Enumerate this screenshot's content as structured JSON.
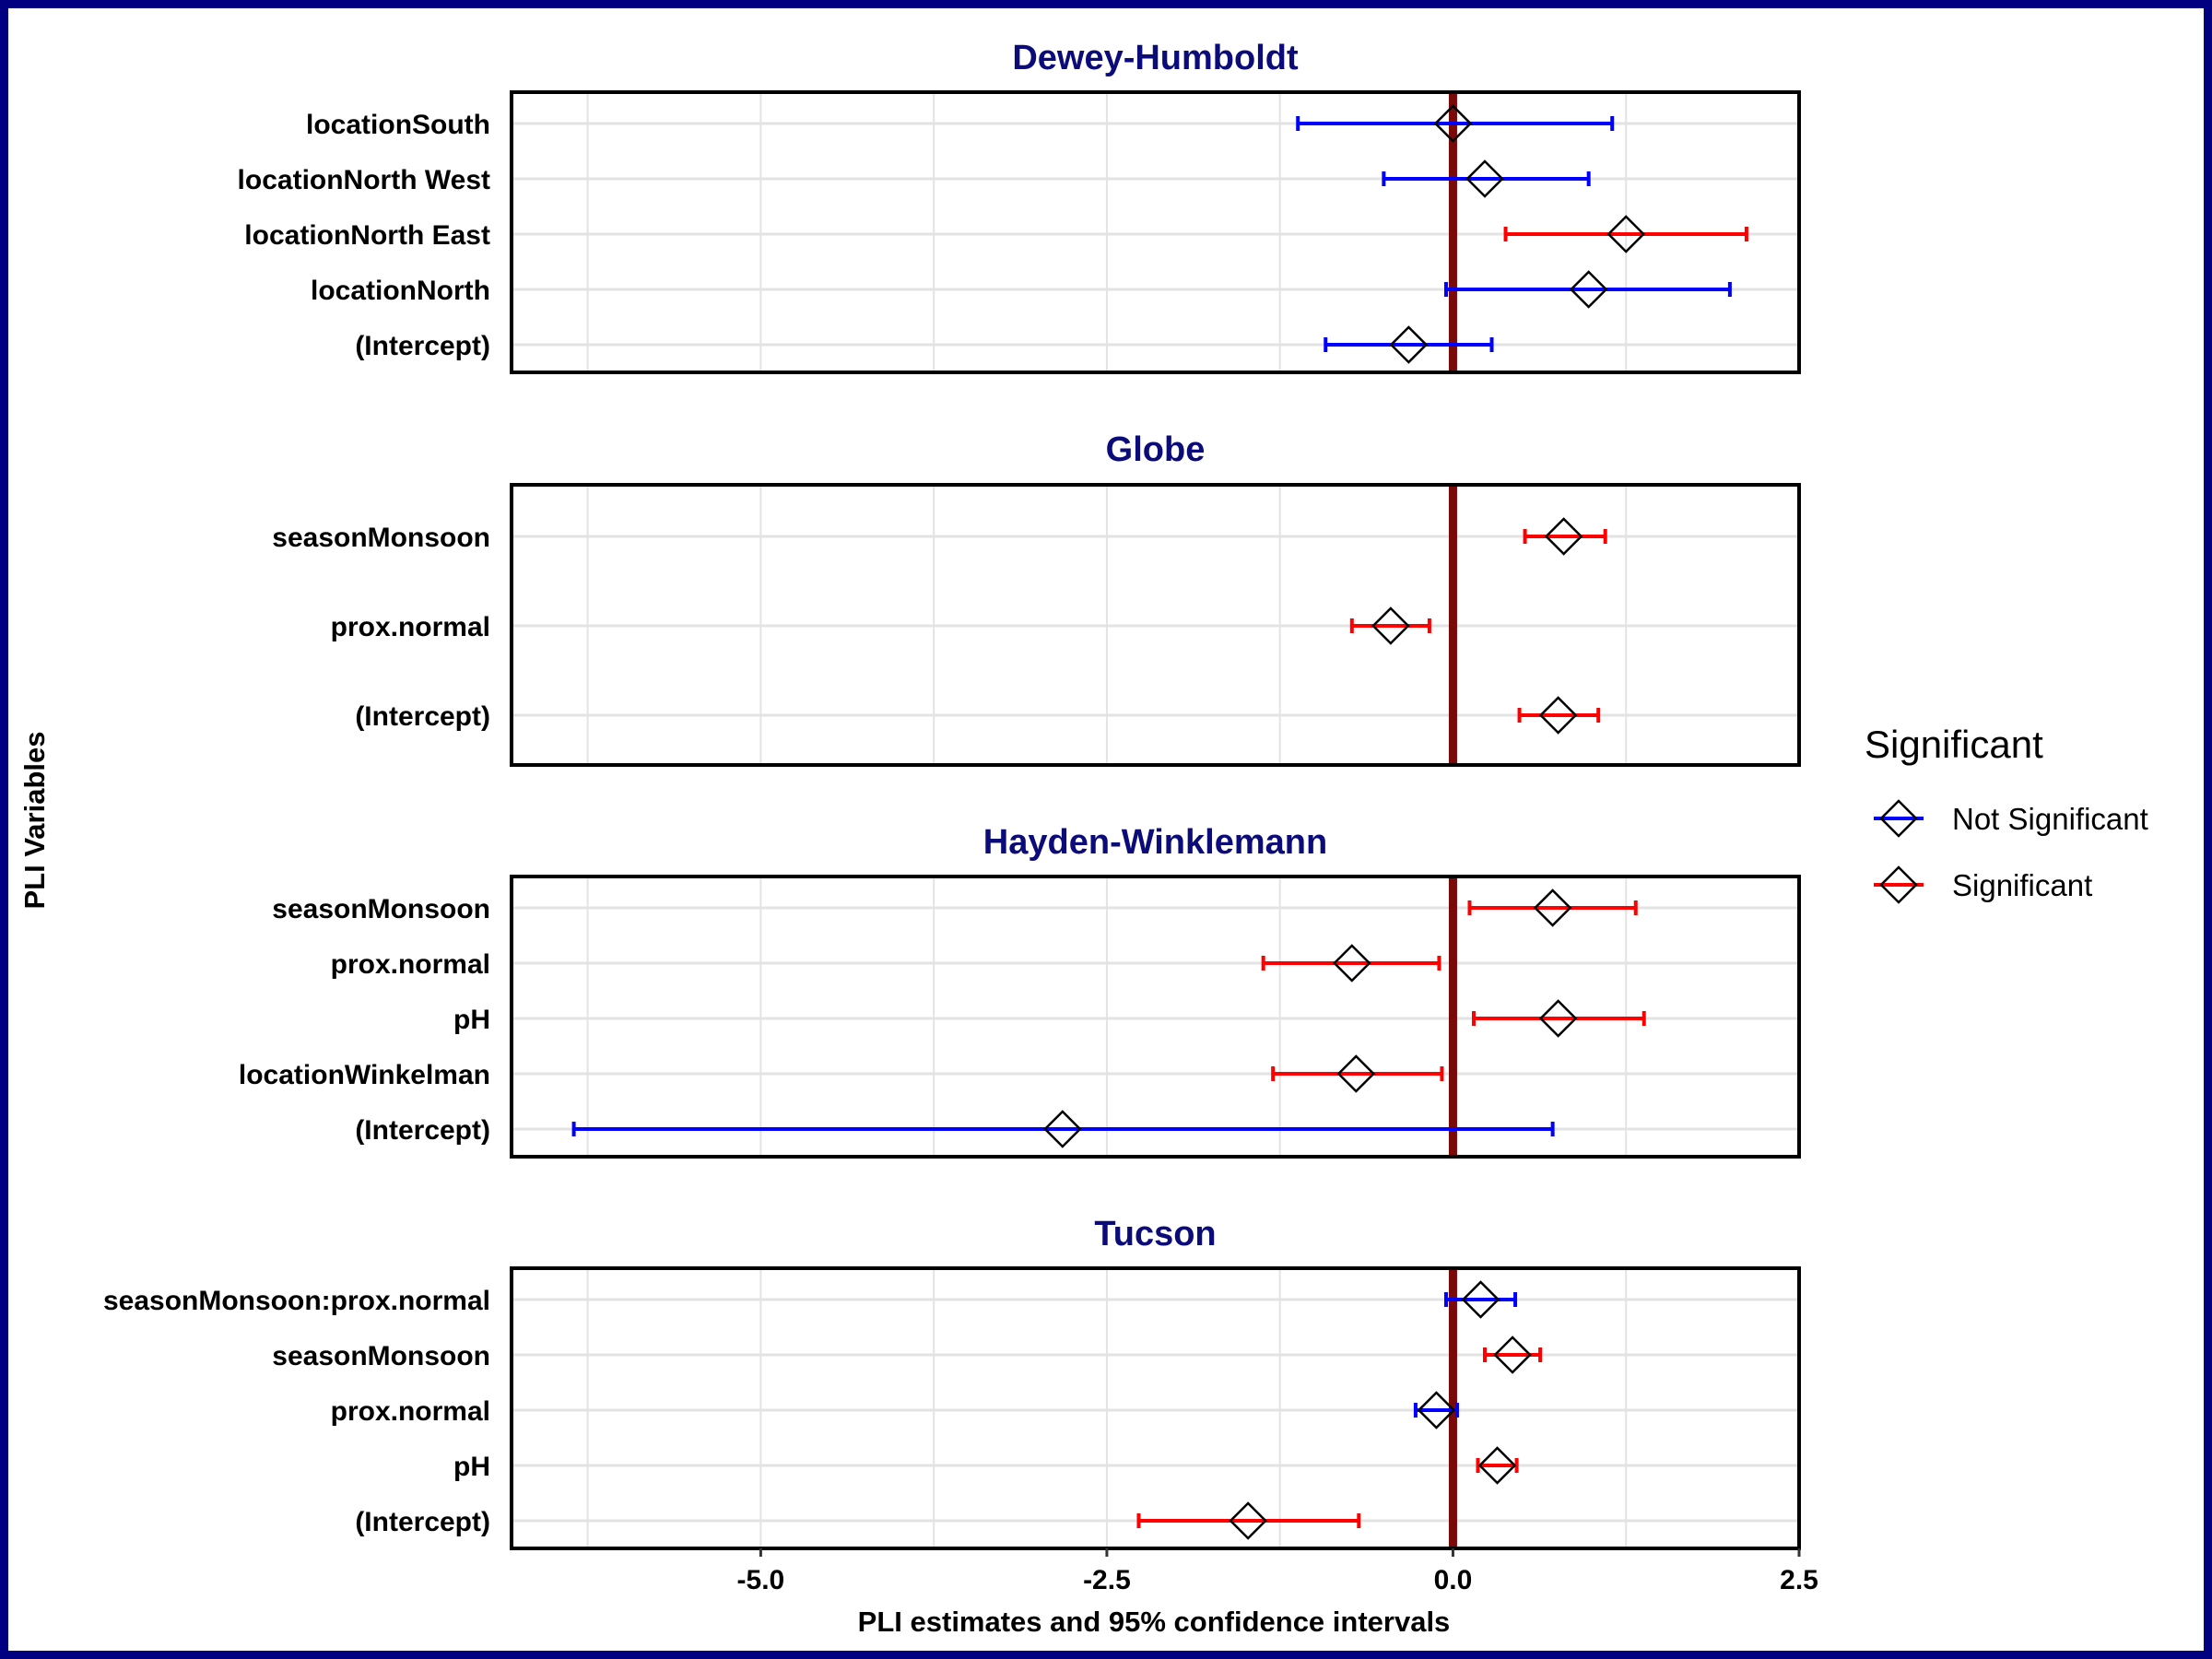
{
  "chart_data": {
    "type": "forest",
    "xlabel": "PLI estimates and 95% confidence intervals",
    "ylabel": "PLI Variables",
    "xlim": [
      -6.8,
      2.5
    ],
    "xticks": [
      -5.0,
      -2.5,
      0.0,
      2.5
    ],
    "xtick_labels": [
      "-5.0",
      "-2.5",
      "0.0",
      "2.5"
    ],
    "reference_line": 0.0,
    "grid": true,
    "legend": {
      "title": "Significant",
      "position": "right",
      "entries": [
        {
          "label": "Not Significant",
          "color": "#0000ff"
        },
        {
          "label": "Significant",
          "color": "#ff0000"
        }
      ]
    },
    "colors": {
      "Not Significant": "#0000ff",
      "Significant": "#ff0000",
      "reference": "#7a0a0a",
      "title": "#0b0b7a"
    },
    "panels": [
      {
        "title": "Dewey-Humboldt",
        "rows": [
          {
            "label": "locationSouth",
            "estimate": 0.0,
            "lower": -1.12,
            "upper": 1.15,
            "significant": "Not Significant"
          },
          {
            "label": "locationNorth West",
            "estimate": 0.23,
            "lower": -0.5,
            "upper": 0.98,
            "significant": "Not Significant"
          },
          {
            "label": "locationNorth East",
            "estimate": 1.25,
            "lower": 0.38,
            "upper": 2.12,
            "significant": "Significant"
          },
          {
            "label": "locationNorth",
            "estimate": 0.98,
            "lower": -0.05,
            "upper": 2.0,
            "significant": "Not Significant"
          },
          {
            "label": "(Intercept)",
            "estimate": -0.32,
            "lower": -0.92,
            "upper": 0.28,
            "significant": "Not Significant"
          }
        ]
      },
      {
        "title": "Globe",
        "rows": [
          {
            "label": "seasonMonsoon",
            "estimate": 0.8,
            "lower": 0.52,
            "upper": 1.1,
            "significant": "Significant"
          },
          {
            "label": "prox.normal",
            "estimate": -0.45,
            "lower": -0.73,
            "upper": -0.17,
            "significant": "Significant"
          },
          {
            "label": "(Intercept)",
            "estimate": 0.76,
            "lower": 0.48,
            "upper": 1.05,
            "significant": "Significant"
          }
        ]
      },
      {
        "title": "Hayden-Winklemann",
        "rows": [
          {
            "label": "seasonMonsoon",
            "estimate": 0.72,
            "lower": 0.12,
            "upper": 1.32,
            "significant": "Significant"
          },
          {
            "label": "prox.normal",
            "estimate": -0.73,
            "lower": -1.37,
            "upper": -0.1,
            "significant": "Significant"
          },
          {
            "label": "pH",
            "estimate": 0.76,
            "lower": 0.15,
            "upper": 1.38,
            "significant": "Significant"
          },
          {
            "label": "locationWinkelman",
            "estimate": -0.7,
            "lower": -1.3,
            "upper": -0.08,
            "significant": "Significant"
          },
          {
            "label": "(Intercept)",
            "estimate": -2.82,
            "lower": -6.35,
            "upper": 0.72,
            "significant": "Not Significant"
          }
        ]
      },
      {
        "title": "Tucson",
        "rows": [
          {
            "label": "seasonMonsoon:prox.normal",
            "estimate": 0.2,
            "lower": -0.05,
            "upper": 0.45,
            "significant": "Not Significant"
          },
          {
            "label": "seasonMonsoon",
            "estimate": 0.43,
            "lower": 0.23,
            "upper": 0.63,
            "significant": "Significant"
          },
          {
            "label": "prox.normal",
            "estimate": -0.12,
            "lower": -0.27,
            "upper": 0.03,
            "significant": "Not Significant"
          },
          {
            "label": "pH",
            "estimate": 0.32,
            "lower": 0.18,
            "upper": 0.46,
            "significant": "Significant"
          },
          {
            "label": "(Intercept)",
            "estimate": -1.48,
            "lower": -2.27,
            "upper": -0.68,
            "significant": "Significant"
          }
        ]
      }
    ]
  }
}
